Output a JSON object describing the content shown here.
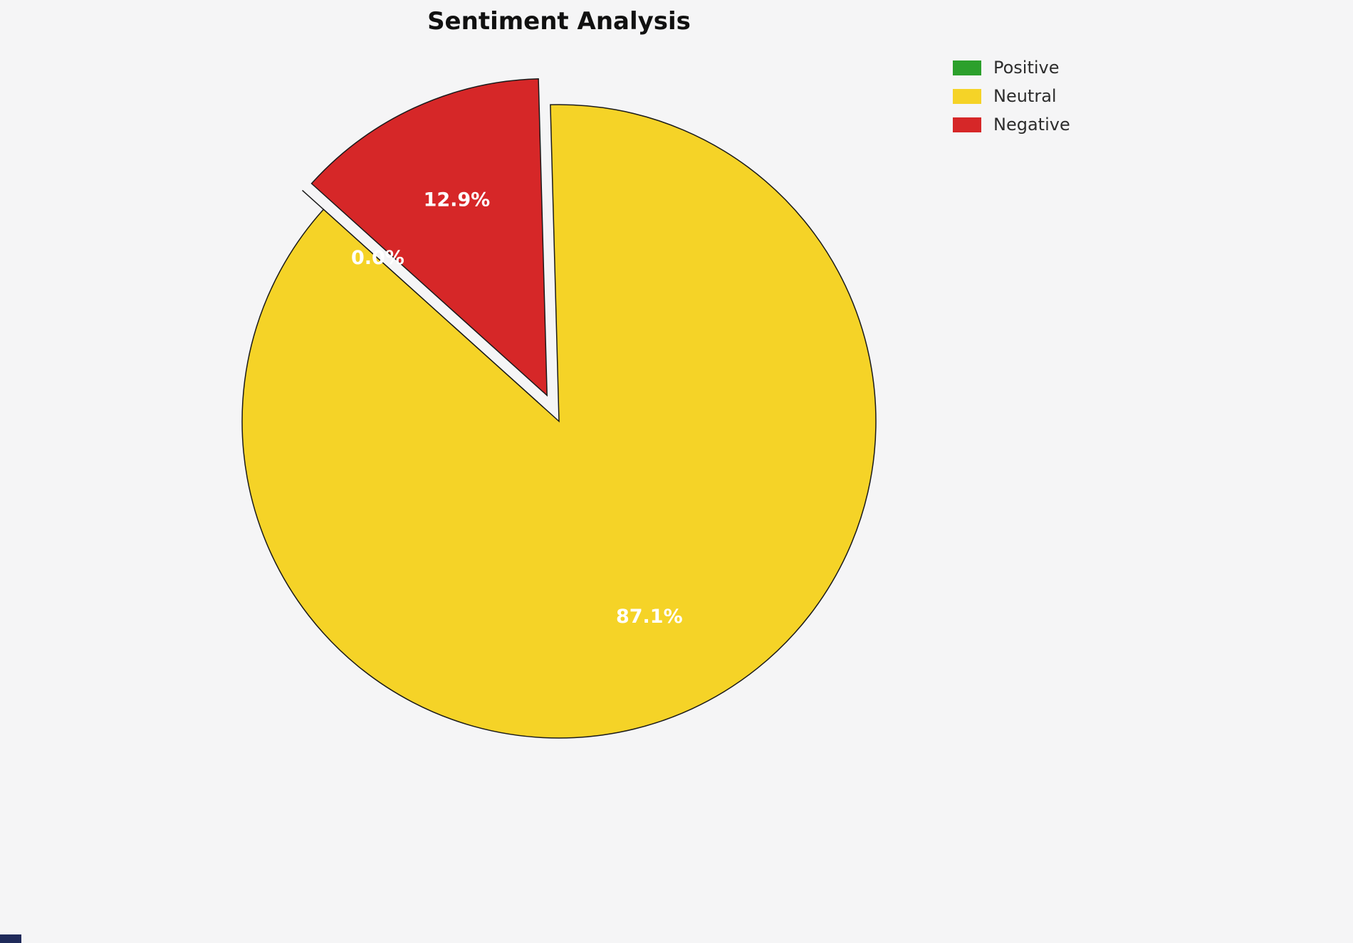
{
  "page": {
    "background": "#f5f5f6",
    "corner_artifact_color": "#1f2a5a"
  },
  "chart_data": {
    "type": "pie",
    "title": "Sentiment Analysis",
    "labels": [
      "Positive",
      "Neutral",
      "Negative"
    ],
    "values": [
      0.0,
      87.1,
      12.9
    ],
    "pct_labels": [
      "0.0%",
      "87.1%",
      "12.9%"
    ],
    "colors": [
      "#2ca02c",
      "#f5d327",
      "#d62728"
    ],
    "explode": [
      0.09,
      0,
      0.09
    ],
    "start_angle": 138,
    "counterclock": true,
    "label_distance": 0.68,
    "edge_color": "#1a1a1a",
    "label_color": "#ffffff",
    "legend_position": "upper-right"
  },
  "legend": {
    "items": [
      {
        "label": "Positive",
        "color": "#2ca02c"
      },
      {
        "label": "Neutral",
        "color": "#f5d327"
      },
      {
        "label": "Negative",
        "color": "#d62728"
      }
    ]
  }
}
